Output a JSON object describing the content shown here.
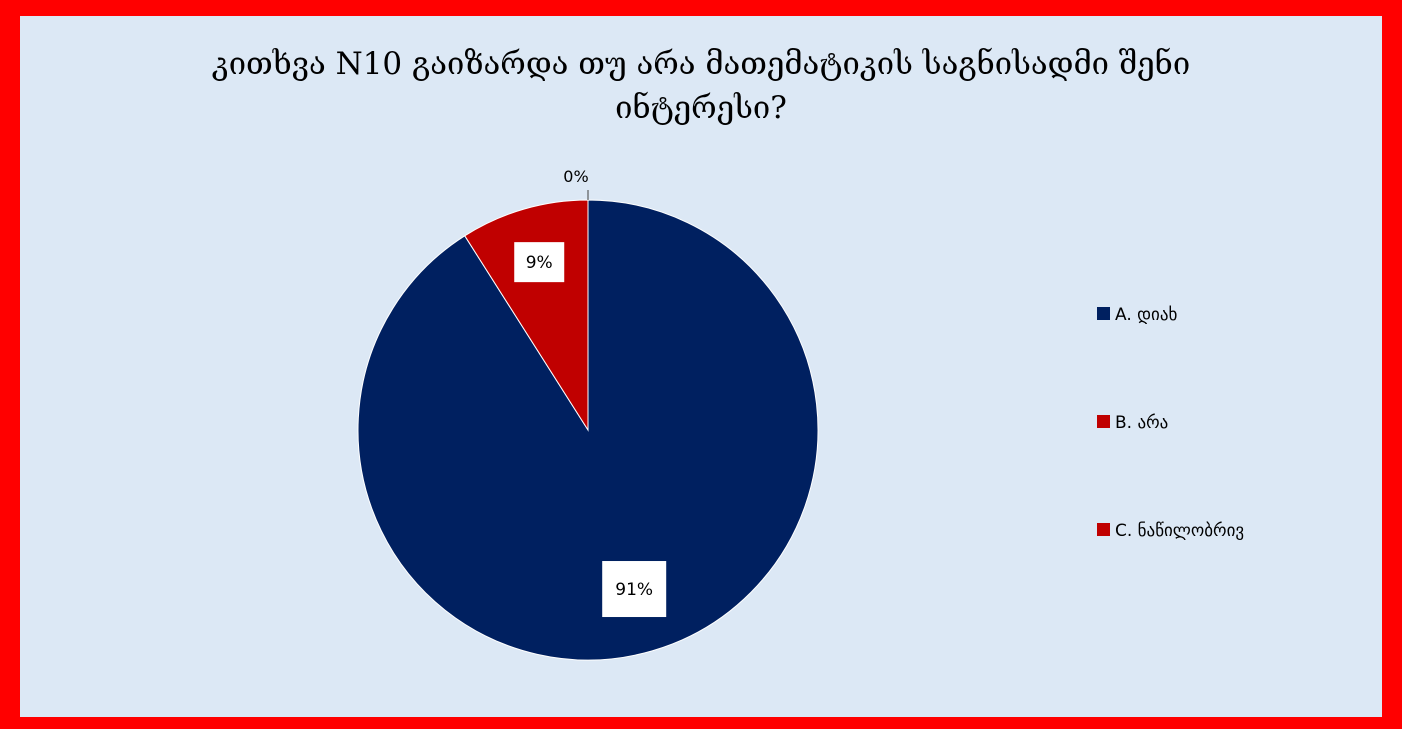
{
  "title_lines": [
    "კითხვა  N10   გაიზარდა თუ არა მათემატიკის საგნისადმი შენი",
    "ინტერესი?"
  ],
  "chart_data": {
    "type": "pie",
    "title": "კითხვა  N10   გაიზარდა თუ არა მათემატიკის საგნისადმი შენი ინტერესი?",
    "legend_position": "right",
    "slices": [
      {
        "label": "A.  დიახ",
        "value": 91,
        "display": "91%",
        "color": "#002060"
      },
      {
        "label": "B.  არა",
        "value": 9,
        "display": "9%",
        "color": "#c00000"
      },
      {
        "label": "C. ნაწილობრივ",
        "value": 0,
        "display": "0%",
        "color": "#c00000"
      }
    ]
  }
}
